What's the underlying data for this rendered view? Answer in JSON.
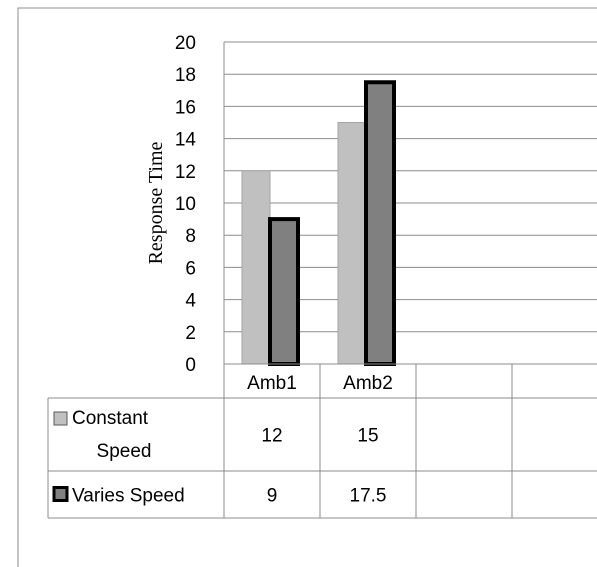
{
  "chart_data": {
    "type": "bar",
    "title": "",
    "xlabel": "",
    "ylabel": "Response Time",
    "ylim": [
      0,
      20
    ],
    "ytick_step": 2,
    "grid": true,
    "legend": "data-table",
    "categories": [
      "Amb1",
      "Amb2",
      "",
      ""
    ],
    "series": [
      {
        "name": "Constant Speed",
        "label_lines": [
          "Constant",
          "Speed"
        ],
        "values": [
          12,
          15,
          null,
          null
        ],
        "value_labels": [
          "12",
          "15",
          "",
          ""
        ],
        "color": "#c0c0c0",
        "outline": "#a6a6a6"
      },
      {
        "name": "Varies Speed",
        "label_lines": [
          "Varies Speed"
        ],
        "values": [
          9,
          17.5,
          null,
          null
        ],
        "value_labels": [
          "9",
          "17.5",
          "",
          ""
        ],
        "color": "#808080",
        "outline": "#000000"
      }
    ]
  }
}
